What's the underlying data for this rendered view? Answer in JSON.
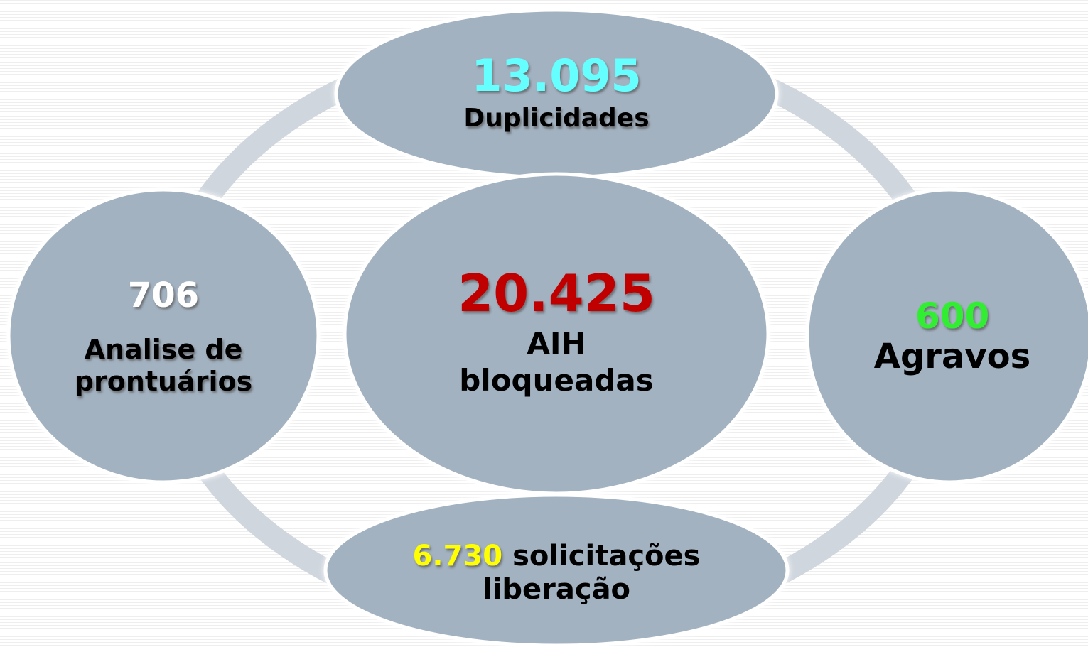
{
  "nodes": [
    {
      "value": "20.425",
      "lines": [
        "AIH",
        "bloqueadas"
      ]
    },
    {
      "value": "13.095",
      "lines": [
        "Duplicidades"
      ]
    },
    {
      "value": "706",
      "lines": [
        "Analise de",
        "prontuários"
      ]
    },
    {
      "value": "600",
      "lines": [
        "Agravos"
      ]
    },
    {
      "value": "6.730",
      "lines": [
        "solicitações",
        "liberação"
      ]
    }
  ]
}
